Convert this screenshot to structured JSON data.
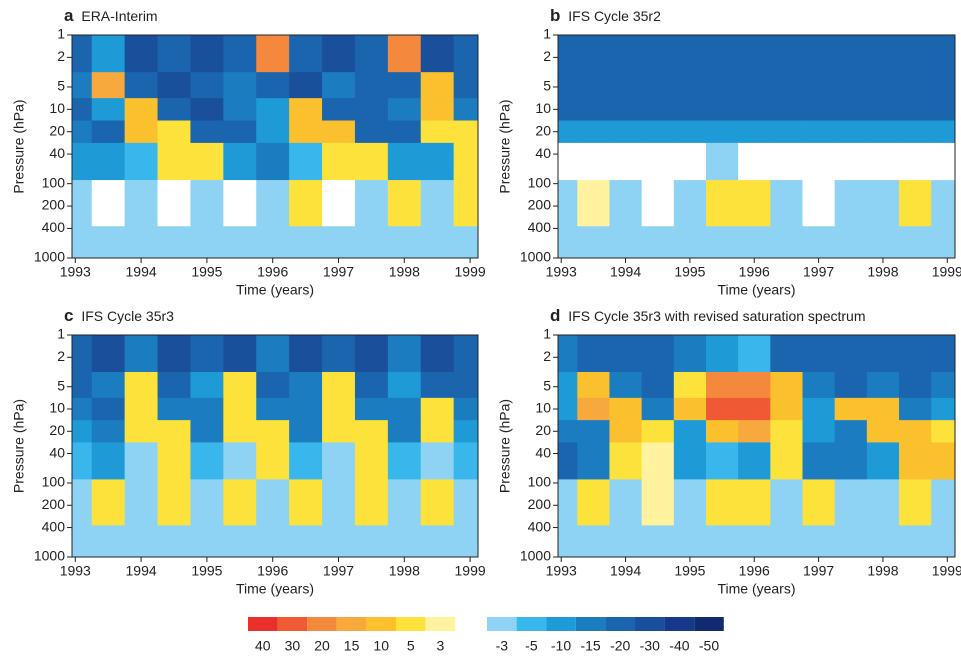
{
  "chart_data": [
    {
      "type": "heatmap",
      "label": "a",
      "title": "ERA-Interim",
      "x_label": "Time (years)",
      "y_label": "Pressure (hPa)",
      "x": [
        1993,
        1993.5,
        1994,
        1994.5,
        1995,
        1995.5,
        1996,
        1996.5,
        1997,
        1997.5,
        1998,
        1998.5,
        1999
      ],
      "y": [
        2,
        5,
        10,
        20,
        40,
        200,
        700
      ],
      "z": [
        [
          -20,
          -10,
          -30,
          -20,
          -30,
          -20,
          25,
          -20,
          -30,
          -20,
          20,
          -30,
          -20
        ],
        [
          -15,
          15,
          -25,
          -30,
          -20,
          -15,
          -20,
          -30,
          -15,
          -25,
          -20,
          10,
          -20
        ],
        [
          -20,
          -10,
          12,
          -20,
          -30,
          -15,
          -10,
          10,
          -20,
          -25,
          -15,
          10,
          -15
        ],
        [
          -15,
          -20,
          10,
          5,
          -20,
          -25,
          -10,
          10,
          10,
          -20,
          -20,
          8,
          5
        ],
        [
          -10,
          -10,
          -5,
          8,
          5,
          -10,
          -15,
          -5,
          6,
          5,
          -10,
          -10,
          5
        ],
        [
          -3,
          2,
          -4,
          2,
          -4,
          2,
          -4,
          5,
          2,
          -4,
          5,
          -4,
          5
        ],
        [
          -4,
          -4,
          -4,
          -4,
          -4,
          -4,
          -4,
          -4,
          -4,
          -4,
          -4,
          -4,
          -4
        ]
      ],
      "xlim": [
        1992.95,
        1999.12
      ],
      "xticks": [
        1993,
        1994,
        1995,
        1996,
        1997,
        1998,
        1999
      ],
      "ylim": [
        1000,
        1
      ],
      "yticks": [
        1,
        2,
        5,
        10,
        20,
        40,
        100,
        200,
        400,
        1000
      ],
      "log_y": true
    },
    {
      "type": "heatmap",
      "label": "b",
      "title": "IFS Cycle 35r2",
      "x_label": "Time (years)",
      "y_label": "Pressure (hPa)",
      "x": [
        1993,
        1993.5,
        1994,
        1994.5,
        1995,
        1995.5,
        1996,
        1996.5,
        1997,
        1997.5,
        1998,
        1998.5,
        1999
      ],
      "y": [
        2,
        5,
        10,
        20,
        40,
        200,
        700
      ],
      "z": [
        [
          -20,
          -20,
          -25,
          -20,
          -20,
          -25,
          -20,
          -20,
          -25,
          -20,
          -20,
          -25,
          -20
        ],
        [
          -25,
          -25,
          -25,
          -25,
          -25,
          -25,
          -25,
          -25,
          -25,
          -25,
          -25,
          -25,
          -25
        ],
        [
          -20,
          -20,
          -20,
          -20,
          -20,
          -20,
          -20,
          -20,
          -20,
          -20,
          -20,
          -20,
          -20
        ],
        [
          -10,
          -10,
          -10,
          -10,
          -10,
          -10,
          -10,
          -10,
          -10,
          -10,
          -10,
          -10,
          -10
        ],
        [
          2,
          -2,
          0,
          -2,
          0,
          -4,
          0,
          -2,
          0,
          -2,
          0,
          -2,
          0
        ],
        [
          -4,
          3,
          -4,
          2,
          -4,
          5,
          5,
          -4,
          2,
          -4,
          -4,
          5,
          -4
        ],
        [
          -4,
          -4,
          -4,
          -4,
          -4,
          -4,
          -4,
          -4,
          -4,
          -4,
          -4,
          -4,
          -4
        ]
      ],
      "xlim": [
        1992.95,
        1999.12
      ],
      "xticks": [
        1993,
        1994,
        1995,
        1996,
        1997,
        1998,
        1999
      ],
      "ylim": [
        1000,
        1
      ],
      "yticks": [
        1,
        2,
        5,
        10,
        20,
        40,
        100,
        200,
        400,
        1000
      ],
      "log_y": true
    },
    {
      "type": "heatmap",
      "label": "c",
      "title": "IFS Cycle 35r3",
      "x_label": "Time (years)",
      "y_label": "Pressure (hPa)",
      "x": [
        1993,
        1993.5,
        1994,
        1994.5,
        1995,
        1995.5,
        1996,
        1996.5,
        1997,
        1997.5,
        1998,
        1998.5,
        1999
      ],
      "y": [
        2,
        5,
        10,
        20,
        40,
        200,
        700
      ],
      "z": [
        [
          -20,
          -30,
          -15,
          -30,
          -20,
          -30,
          -15,
          -30,
          -20,
          -30,
          -15,
          -30,
          -20
        ],
        [
          -20,
          -15,
          6,
          -20,
          -10,
          8,
          -20,
          -15,
          6,
          -20,
          -10,
          -20,
          -20
        ],
        [
          -15,
          -20,
          8,
          -15,
          -15,
          8,
          -15,
          -15,
          8,
          -15,
          -15,
          5,
          -15
        ],
        [
          -10,
          -15,
          5,
          8,
          -15,
          5,
          8,
          -15,
          5,
          8,
          -15,
          5,
          -10
        ],
        [
          -5,
          -10,
          -4,
          6,
          -8,
          -4,
          6,
          -8,
          -4,
          6,
          -8,
          -4,
          -5
        ],
        [
          -3,
          5,
          -4,
          5,
          -4,
          5,
          -4,
          5,
          -4,
          5,
          -4,
          5,
          -4
        ],
        [
          -4,
          -4,
          -4,
          -4,
          -4,
          -4,
          -4,
          -4,
          -4,
          -4,
          -4,
          -4,
          -4
        ]
      ],
      "xlim": [
        1992.95,
        1999.12
      ],
      "xticks": [
        1993,
        1994,
        1995,
        1996,
        1997,
        1998,
        1999
      ],
      "ylim": [
        1000,
        1
      ],
      "yticks": [
        1,
        2,
        5,
        10,
        20,
        40,
        100,
        200,
        400,
        1000
      ],
      "log_y": true
    },
    {
      "type": "heatmap",
      "label": "d",
      "title": "IFS Cycle 35r3 with revised saturation spectrum",
      "x_label": "Time (years)",
      "y_label": "Pressure (hPa)",
      "x": [
        1993,
        1993.5,
        1994,
        1994.5,
        1995,
        1995.5,
        1996,
        1996.5,
        1997,
        1997.5,
        1998,
        1998.5,
        1999
      ],
      "y": [
        2,
        5,
        10,
        20,
        40,
        200,
        700
      ],
      "z": [
        [
          -15,
          -25,
          -20,
          -25,
          -15,
          -10,
          -5,
          -20,
          -25,
          -20,
          -20,
          -20,
          -20
        ],
        [
          -10,
          10,
          -15,
          -20,
          8,
          25,
          25,
          10,
          -15,
          -20,
          -15,
          -20,
          -15
        ],
        [
          -10,
          15,
          10,
          -15,
          10,
          30,
          30,
          10,
          -10,
          10,
          10,
          -15,
          -10
        ],
        [
          -15,
          -15,
          10,
          5,
          -10,
          10,
          15,
          5,
          -10,
          -15,
          10,
          10,
          8
        ],
        [
          -20,
          -15,
          5,
          3,
          -10,
          -5,
          -10,
          5,
          -15,
          -15,
          -10,
          10,
          10
        ],
        [
          -3,
          5,
          -4,
          3,
          -4,
          8,
          8,
          -4,
          5,
          -4,
          -4,
          8,
          -4
        ],
        [
          -4,
          -4,
          -4,
          -4,
          -4,
          -4,
          -4,
          -4,
          -4,
          -4,
          -4,
          -4,
          -4
        ]
      ],
      "xlim": [
        1992.95,
        1999.12
      ],
      "xticks": [
        1993,
        1994,
        1995,
        1996,
        1997,
        1998,
        1999
      ],
      "ylim": [
        1000,
        1
      ],
      "yticks": [
        1,
        2,
        5,
        10,
        20,
        40,
        100,
        200,
        400,
        1000
      ],
      "log_y": true
    }
  ],
  "colorbar": {
    "warm_levels": [
      40,
      30,
      20,
      15,
      10,
      5,
      3
    ],
    "warm_colors": [
      "#e8312a",
      "#ef5a35",
      "#f4883d",
      "#f8a93d",
      "#fbc02d",
      "#fde23c",
      "#fff3a0"
    ],
    "cool_levels": [
      -3,
      -5,
      -10,
      -15,
      -20,
      -30,
      -40,
      -50
    ],
    "cool_colors": [
      "#8fd3f4",
      "#39b7ec",
      "#1e9ad6",
      "#1b7cc0",
      "#1a65ae",
      "#1a4f9c",
      "#17398a",
      "#142a6e"
    ]
  }
}
